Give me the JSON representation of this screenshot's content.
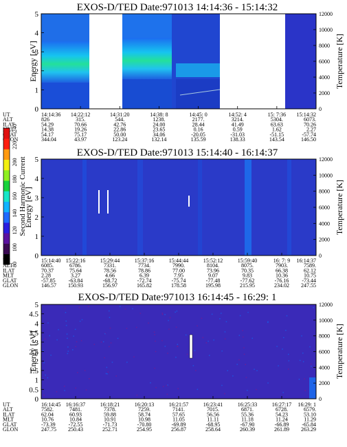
{
  "chart_data": {
    "type": "heatmap",
    "colorbar": {
      "label": "Second Harmonic Current",
      "ticks": [
        "80",
        "100",
        "120",
        "140",
        "160",
        "180",
        "200",
        "220",
        "240"
      ],
      "colors": [
        "#000000",
        "#3a0a52",
        "#5a12a0",
        "#2a1ee0",
        "#1e6aff",
        "#10b4ff",
        "#16e6c8",
        "#18d23c",
        "#8ef020",
        "#f2f010",
        "#ff9a10",
        "#ff1e10",
        "#e01010"
      ]
    },
    "panels": [
      {
        "title": "EXOS-D/TED   Date:971013   14:14:36 - 15:14:32",
        "ylabel": "Energy [eV]",
        "y2label": "Temperature [K]",
        "ylim": [
          0,
          5
        ],
        "y2lim": [
          0,
          12000
        ],
        "yticks": [
          "0",
          "1",
          "2",
          "3",
          "4",
          "5"
        ],
        "y2ticks": [
          "0",
          "2000",
          "4000",
          "6000",
          "8000",
          "10000",
          "12000"
        ],
        "eph_labels": [
          "UT",
          "ALT",
          "ILAT",
          "MLT",
          "GLAT",
          "GLON"
        ],
        "eph_columns": [
          {
            "time": "14:14:36",
            "vals": [
              "826",
              "54.29",
              "14.38",
              "54.17",
              "344.04"
            ]
          },
          {
            "time": "14:22:12",
            "vals": [
              "315.",
              "70.66",
              "19.26",
              "75.17",
              "43.97"
            ]
          },
          {
            "time": "14:31:20",
            "vals": [
              "544.",
              "42.76",
              "22.86",
              "50.00",
              "123.24"
            ]
          },
          {
            "time": "14:38: 8",
            "vals": [
              "1238.",
              "24.00",
              "23.65",
              "34.06",
              "132.14"
            ]
          },
          {
            "time": "14:45: 0",
            "vals": [
              "2177.",
              "28.44",
              "0.16",
              "-20.05",
              "135.59"
            ]
          },
          {
            "time": "14:52: 4",
            "vals": [
              "3214.",
              "41.49",
              "0.59",
              "-31.03",
              "138.33"
            ]
          },
          {
            "time": "15: 7:36",
            "vals": [
              "5304.",
              "63.63",
              "1.62",
              "-51.15",
              "143.54"
            ]
          },
          {
            "time": "15:14:32",
            "vals": [
              "6073.",
              "70.26",
              "2.27",
              "-57.74",
              "146.50"
            ]
          }
        ]
      },
      {
        "title": "EXOS-D/TED   Date:971013   15:14:40 - 16:14:37",
        "ylabel": "Energy [eV]",
        "y2label": "Temperature [K]",
        "ylim": [
          0,
          5
        ],
        "y2lim": [
          0,
          12000
        ],
        "yticks": [
          "0",
          "1",
          "2",
          "3",
          "4",
          "5"
        ],
        "y2ticks": [
          "0",
          "2000",
          "4000",
          "6000",
          "8000",
          "10000",
          "12000"
        ],
        "eph_labels": [
          "UT",
          "ALT",
          "ILAT",
          "MLT",
          "GLAT",
          "GLON"
        ],
        "eph_columns": [
          {
            "time": "15:14:40",
            "vals": [
              "6085.",
              "70.37",
              "2.28",
              "-57.85",
              "146.57"
            ]
          },
          {
            "time": "15:22:16",
            "vals": [
              "6786.",
              "75.64",
              "3.27",
              "-63.84",
              "150.93"
            ]
          },
          {
            "time": "15:29:44",
            "vals": [
              "7331.",
              "78.56",
              "4.66",
              "-68.72",
              "156.97"
            ]
          },
          {
            "time": "15:37:16",
            "vals": [
              "7734.",
              "78.86",
              "6.39",
              "-72.74",
              "165.82"
            ]
          },
          {
            "time": "15:44:44",
            "vals": [
              "7990.",
              "77.00",
              "7.95",
              "-75.74",
              "178.58"
            ]
          },
          {
            "time": "15:52:12",
            "vals": [
              "8104.",
              "73.96",
              "9.07",
              "-77.48",
              "195.98"
            ]
          },
          {
            "time": "15:59:40",
            "vals": [
              "8075.",
              "70.35",
              "9.83",
              "-77.62",
              "215.95"
            ]
          },
          {
            "time": "16: 7: 9",
            "vals": [
              "7903.",
              "66.38",
              "10.36",
              "-76.16",
              "234.02"
            ]
          },
          {
            "time": "16:14:37",
            "vals": [
              "7589.",
              "62.12",
              "10.75",
              "-73.44",
              "247.55"
            ]
          }
        ]
      },
      {
        "title": "EXOS-D/TED   Date:971013   16:14:45 - 16:29: 1",
        "ylabel": "Energy [eV]",
        "y2label": "Temperature [K]",
        "ylim": [
          0,
          5
        ],
        "y2lim": [
          0,
          12000
        ],
        "yticks": [
          "0",
          "0.5",
          "1",
          "1.5",
          "2",
          "2.5",
          "3",
          "3.5",
          "4",
          "4.5",
          "5"
        ],
        "y2ticks": [
          "0",
          "2000",
          "4000",
          "6000",
          "8000",
          "10000",
          "12000"
        ],
        "eph_labels": [
          "UT",
          "ALT",
          "ILAT",
          "MLT",
          "GLAT",
          "GLON"
        ],
        "eph_columns": [
          {
            "time": "16:14:45",
            "vals": [
              "7582.",
              "62.04",
              "10.76",
              "-73.39",
              "247.75"
            ]
          },
          {
            "time": "16:16:37",
            "vals": [
              "7481.",
              "60.93",
              "10.84",
              "-72.55",
              "250.43"
            ]
          },
          {
            "time": "16:18:21",
            "vals": [
              "7378.",
              "59.88",
              "10.91",
              "-71.73",
              "252.71"
            ]
          },
          {
            "time": "16:20:13",
            "vals": [
              "7259.",
              "58.74",
              "10.98",
              "-70.80",
              "254.95"
            ]
          },
          {
            "time": "16:21:57",
            "vals": [
              "7141.",
              "57.65",
              "11.05",
              "-69.89",
              "256.87"
            ]
          },
          {
            "time": "16:23:41",
            "vals": [
              "7015.",
              "56.56",
              "11.11",
              "-68.95",
              "258.64"
            ]
          },
          {
            "time": "16:25:33",
            "vals": [
              "6871.",
              "55.36",
              "11.18",
              "-67.90",
              "260.39"
            ]
          },
          {
            "time": "16:27:17",
            "vals": [
              "6728.",
              "54.23",
              "11.24",
              "-66.89",
              "261.89"
            ]
          },
          {
            "time": "16:29: 1",
            "vals": [
              "6579.",
              "53.10",
              "11.29",
              "-65.84",
              "263.29"
            ]
          }
        ]
      }
    ]
  }
}
